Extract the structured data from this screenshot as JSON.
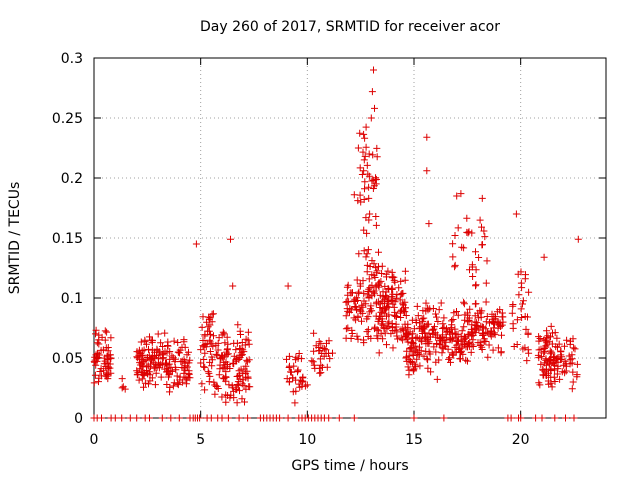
{
  "chart_data": {
    "type": "scatter",
    "title": "Day 260 of 2017, SRMTID for receiver acor",
    "xlabel": "GPS time / hours",
    "ylabel": "SRMTID / TECUs",
    "xlim": [
      0,
      24
    ],
    "ylim": [
      0,
      0.3
    ],
    "x_ticks": [
      0,
      5,
      10,
      15,
      20
    ],
    "x_tick_labels": [
      "0",
      "5",
      "10",
      "15",
      "20"
    ],
    "y_ticks": [
      0,
      0.05,
      0.1,
      0.15,
      0.2,
      0.25,
      0.3
    ],
    "y_tick_labels": [
      "0",
      "0.05",
      "0.1",
      "0.15",
      "0.2",
      "0.25",
      "0.3"
    ],
    "grid": true,
    "marker": "plus",
    "color": "#dd0000",
    "series": [
      {
        "name": "SRMTID",
        "clusters": [
          {
            "x": [
              0.0,
              0.8
            ],
            "y": [
              0.02,
              0.08
            ],
            "n": 60
          },
          {
            "x": [
              1.3,
              1.5
            ],
            "y": [
              0.015,
              0.04
            ],
            "n": 4
          },
          {
            "x": [
              2.0,
              3.5
            ],
            "y": [
              0.02,
              0.075
            ],
            "n": 110
          },
          {
            "x": [
              3.5,
              4.5
            ],
            "y": [
              0.02,
              0.07
            ],
            "n": 60
          },
          {
            "x": [
              5.0,
              5.6
            ],
            "y": [
              0.02,
              0.1
            ],
            "n": 45
          },
          {
            "x": [
              5.6,
              7.3
            ],
            "y": [
              0.01,
              0.08
            ],
            "n": 120
          },
          {
            "x": [
              9.0,
              10.0
            ],
            "y": [
              0.01,
              0.06
            ],
            "n": 35
          },
          {
            "x": [
              10.2,
              11.2
            ],
            "y": [
              0.03,
              0.08
            ],
            "n": 30
          },
          {
            "x": [
              11.8,
              12.4
            ],
            "y": [
              0.06,
              0.12
            ],
            "n": 30
          },
          {
            "x": [
              12.2,
              13.4
            ],
            "y": [
              0.05,
              0.15
            ],
            "n": 80
          },
          {
            "x": [
              12.3,
              13.3
            ],
            "y": [
              0.15,
              0.25
            ],
            "n": 40
          },
          {
            "x": [
              13.3,
              14.6
            ],
            "y": [
              0.05,
              0.13
            ],
            "n": 120
          },
          {
            "x": [
              14.6,
              16.2
            ],
            "y": [
              0.03,
              0.1
            ],
            "n": 130
          },
          {
            "x": [
              16.2,
              17.8
            ],
            "y": [
              0.04,
              0.1
            ],
            "n": 110
          },
          {
            "x": [
              16.8,
              18.6
            ],
            "y": [
              0.1,
              0.17
            ],
            "n": 30
          },
          {
            "x": [
              17.8,
              19.2
            ],
            "y": [
              0.05,
              0.1
            ],
            "n": 80
          },
          {
            "x": [
              19.6,
              20.4
            ],
            "y": [
              0.03,
              0.13
            ],
            "n": 30
          },
          {
            "x": [
              20.8,
              22.0
            ],
            "y": [
              0.02,
              0.08
            ],
            "n": 90
          },
          {
            "x": [
              22.0,
              22.7
            ],
            "y": [
              0.02,
              0.07
            ],
            "n": 25
          }
        ],
        "peaks": [
          {
            "x": 4.8,
            "y": 0.145
          },
          {
            "x": 6.4,
            "y": 0.149
          },
          {
            "x": 6.5,
            "y": 0.11
          },
          {
            "x": 9.1,
            "y": 0.11
          },
          {
            "x": 12.2,
            "y": 0.186
          },
          {
            "x": 12.5,
            "y": 0.18
          },
          {
            "x": 12.9,
            "y": 0.22
          },
          {
            "x": 13.0,
            "y": 0.25
          },
          {
            "x": 13.05,
            "y": 0.272
          },
          {
            "x": 13.1,
            "y": 0.29
          },
          {
            "x": 13.15,
            "y": 0.258
          },
          {
            "x": 13.2,
            "y": 0.2
          },
          {
            "x": 15.6,
            "y": 0.234
          },
          {
            "x": 15.6,
            "y": 0.206
          },
          {
            "x": 15.7,
            "y": 0.162
          },
          {
            "x": 17.0,
            "y": 0.185
          },
          {
            "x": 17.2,
            "y": 0.187
          },
          {
            "x": 18.2,
            "y": 0.183
          },
          {
            "x": 19.8,
            "y": 0.17
          },
          {
            "x": 21.1,
            "y": 0.134
          },
          {
            "x": 22.7,
            "y": 0.149
          }
        ],
        "zero_points_x": [
          0.0,
          0.15,
          0.35,
          0.8,
          1.0,
          1.3,
          1.7,
          2.0,
          2.4,
          2.6,
          3.2,
          3.6,
          4.0,
          4.5,
          4.65,
          4.75,
          4.85,
          4.95,
          5.3,
          5.5,
          5.8,
          6.0,
          6.3,
          6.8,
          7.2,
          7.8,
          7.95,
          8.1,
          8.25,
          8.4,
          8.55,
          8.7,
          9.1,
          9.6,
          9.75,
          9.9,
          10.05,
          10.2,
          10.35,
          10.5,
          10.65,
          10.8,
          11.0,
          11.5,
          12.2,
          15.0,
          16.4,
          19.4,
          19.55,
          19.9,
          20.0,
          20.7,
          21.0,
          21.6,
          22.1,
          22.5
        ]
      }
    ]
  }
}
